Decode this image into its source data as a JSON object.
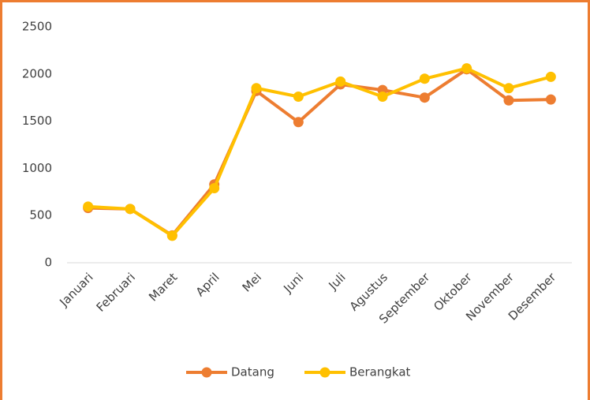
{
  "chart_data": {
    "type": "line",
    "categories": [
      "Januari",
      "Februari",
      "Maret",
      "April",
      "Mei",
      "Juni",
      "Juli",
      "Agustus",
      "September",
      "Oktober",
      "November",
      "Desember"
    ],
    "series": [
      {
        "name": "Datang",
        "color": "#ed7d31",
        "values": [
          580,
          570,
          290,
          830,
          1820,
          1490,
          1890,
          1830,
          1750,
          2050,
          1720,
          1730
        ]
      },
      {
        "name": "Berangkat",
        "color": "#ffc000",
        "values": [
          595,
          570,
          285,
          790,
          1850,
          1760,
          1920,
          1760,
          1950,
          2060,
          1850,
          1970
        ]
      }
    ],
    "ylim": [
      0,
      2500
    ],
    "yticks": [
      0,
      500,
      1000,
      1500,
      2000,
      2500
    ],
    "grid": false,
    "legend": "bottom"
  }
}
